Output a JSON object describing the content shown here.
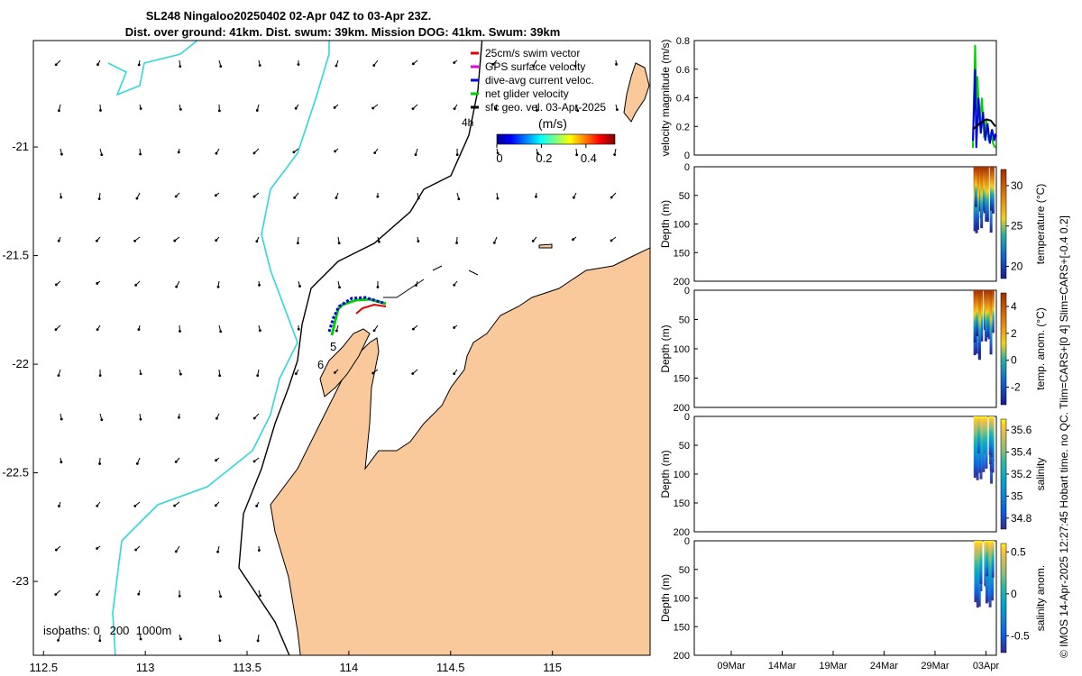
{
  "header": {
    "line1": "SL248 Ningaloo20250402 02-Apr 04Z to 03-Apr 23Z.",
    "line2": "Dist. over ground: 41km. Dist. swum: 39km. Mission DOG: 41km. Swum: 39km"
  },
  "side_credit": "© IMOS 14-Apr-2025 12:27:45 Hobart time. no QC. Tlim=CARS+[0 4] Slim=CARS+[-0.4 0.2]",
  "colors": {
    "land": "#f9c89b",
    "coastline": "#000000",
    "isobath_shallow": "#000000",
    "isobath_deep": "#30d8d8"
  },
  "chart_data": [
    {
      "type": "map",
      "x_ticks": [
        "112.5",
        "113",
        "113.5",
        "114",
        "114.5",
        "115"
      ],
      "y_ticks": [
        "-21",
        "-21.5",
        "-22",
        "-22.5",
        "-23"
      ],
      "xlim": [
        112.45,
        115.48
      ],
      "ylim": [
        -23.34,
        -20.51
      ],
      "legend": {
        "entries": [
          {
            "label": "25cm/s swim vector",
            "color": "#e00000"
          },
          {
            "label": "GPS surface velocity",
            "color": "#e000e0"
          },
          {
            "label": "dive-avg current veloc.",
            "color": "#0000e0"
          },
          {
            "label": "net glider velocity",
            "color": "#00d000"
          },
          {
            "label": "sfc geo. vel. 03-Apr-2025",
            "color": "#000000"
          }
        ],
        "colorbar_label": "(m/s)",
        "colorbar_ticks": [
          "0",
          "0.2",
          "0.4"
        ],
        "time_label": "4h"
      },
      "track_day_labels": [
        "5",
        "6"
      ],
      "isobath_legend": "isobaths: 0   200  1000m"
    },
    {
      "type": "line",
      "ylabel": "velocity magnitude (m/s)",
      "ylim": [
        0,
        0.8
      ],
      "y_ticks": [
        "0",
        "0.2",
        "0.4",
        "0.6",
        "0.8"
      ],
      "series": [
        {
          "color": "#00d000",
          "x": [
            0.0,
            0.05,
            0.1,
            0.15,
            0.2,
            0.3,
            0.4,
            0.5,
            0.6,
            0.7,
            0.8,
            0.9,
            1.0
          ],
          "y": [
            0.05,
            0.45,
            0.77,
            0.3,
            0.55,
            0.2,
            0.4,
            0.12,
            0.25,
            0.1,
            0.15,
            0.08,
            0.05
          ]
        },
        {
          "color": "#0000e0",
          "x": [
            0.0,
            0.1,
            0.15,
            0.25,
            0.35,
            0.45,
            0.55,
            0.65,
            0.75,
            0.85,
            0.95,
            1.0
          ],
          "y": [
            0.1,
            0.6,
            0.05,
            0.4,
            0.15,
            0.3,
            0.1,
            0.22,
            0.08,
            0.18,
            0.1,
            0.15
          ]
        },
        {
          "color": "#000000",
          "x": [
            0.0,
            0.3,
            0.6,
            0.8,
            1.0
          ],
          "y": [
            0.18,
            0.22,
            0.25,
            0.24,
            0.2
          ]
        }
      ]
    },
    {
      "type": "heatmap",
      "ylabel": "Depth (m)",
      "clabel": "temperature (°C)",
      "y_ticks": [
        "0",
        "50",
        "100",
        "150",
        "200"
      ],
      "c_ticks": [
        "20",
        "25",
        "30"
      ],
      "cmin": 18.5,
      "cmax": 32,
      "colormap": "parula"
    },
    {
      "type": "heatmap",
      "ylabel": "Depth (m)",
      "clabel": "temp. anom. (°C)",
      "y_ticks": [
        "0",
        "50",
        "100",
        "150",
        "200"
      ],
      "c_ticks": [
        "-2",
        "0",
        "2",
        "4"
      ],
      "cmin": -3.3,
      "cmax": 5,
      "colormap": "parula"
    },
    {
      "type": "heatmap",
      "ylabel": "Depth (m)",
      "clabel": "salinity",
      "y_ticks": [
        "0",
        "50",
        "100",
        "150",
        "200"
      ],
      "c_ticks": [
        "34.8",
        "35",
        "35.2",
        "35.4",
        "35.6"
      ],
      "cmin": 34.7,
      "cmax": 35.7,
      "colormap": "parula"
    },
    {
      "type": "heatmap",
      "ylabel": "Depth (m)",
      "clabel": "salinity anom.",
      "y_ticks": [
        "0",
        "50",
        "100",
        "150",
        "200"
      ],
      "c_ticks": [
        "-0.5",
        "0",
        "0.5"
      ],
      "cmin": -0.7,
      "cmax": 0.6,
      "colormap": "parula"
    }
  ],
  "time_axis": {
    "ticks": [
      "09Mar",
      "14Mar",
      "19Mar",
      "24Mar",
      "29Mar",
      "03Apr"
    ]
  }
}
